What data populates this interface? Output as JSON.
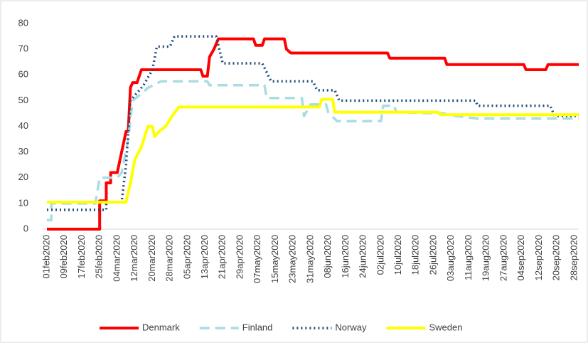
{
  "chart_data": {
    "type": "line",
    "step": false,
    "xlim": [
      "01feb2020",
      "30sep2020"
    ],
    "xticks": [
      "01feb2020",
      "09feb2020",
      "17feb2020",
      "25feb2020",
      "04mar2020",
      "12mar2020",
      "20mar2020",
      "28mar2020",
      "05apr2020",
      "13apr2020",
      "21apr2020",
      "29apr2020",
      "07may2020",
      "15may2020",
      "23may2020",
      "31may2020",
      "08jun2020",
      "16jun2020",
      "24jun2020",
      "02jul2020",
      "10jul2020",
      "18jul2020",
      "26jul2020",
      "03aug2020",
      "11aug2020",
      "19aug2020",
      "27aug2020",
      "04sep2020",
      "12sep2020",
      "20sep2020",
      "28sep2020"
    ],
    "ylim": [
      0,
      80
    ],
    "yticks": [
      0,
      10,
      20,
      30,
      40,
      50,
      60,
      70,
      80
    ],
    "grid": false,
    "legend": "bottom",
    "series": [
      {
        "name": "Denmark",
        "color": "#ff0000",
        "dash": "solid",
        "x": [
          "01feb2020",
          "25feb2020",
          "25feb2020",
          "28feb2020",
          "28feb2020",
          "01mar2020",
          "01mar2020",
          "04mar2020",
          "06mar2020",
          "08mar2020",
          "09mar2020",
          "10mar2020",
          "11mar2020",
          "13mar2020",
          "15mar2020",
          "11apr2020",
          "12apr2020",
          "14apr2020",
          "15apr2020",
          "17apr2020",
          "19apr2020",
          "05may2020",
          "06may2020",
          "09may2020",
          "10may2020",
          "19may2020",
          "20may2020",
          "22may2020",
          "05jul2020",
          "06jul2020",
          "31jul2020",
          "01aug2020",
          "05sep2020",
          "06sep2020",
          "15sep2020",
          "16sep2020",
          "30sep2020"
        ],
        "values": [
          0,
          0,
          11,
          11,
          18,
          18,
          22,
          22,
          30,
          38,
          38,
          55,
          57,
          57,
          62,
          62,
          59.5,
          59.5,
          67,
          70,
          74,
          74,
          71.5,
          71.5,
          74,
          74,
          70,
          68.5,
          68.5,
          66.5,
          66.5,
          64,
          64,
          62,
          62,
          64,
          64
        ]
      },
      {
        "name": "Finland",
        "color": "#a9dce3",
        "dash": "dashed",
        "x": [
          "01feb2020",
          "03feb2020",
          "03feb2020",
          "23feb2020",
          "25feb2020",
          "04mar2020",
          "06mar2020",
          "09mar2020",
          "11mar2020",
          "14mar2020",
          "18mar2020",
          "24mar2020",
          "14apr2020",
          "15apr2020",
          "10may2020",
          "11may2020",
          "27may2020",
          "28may2020",
          "31may2020",
          "07jun2020",
          "08jun2020",
          "12jun2020",
          "02jul2020",
          "03jul2020",
          "08jul2020",
          "09jul2020",
          "31jul2020",
          "01aug2020",
          "15aug2020",
          "30sep2020"
        ],
        "values": [
          3.5,
          3.5,
          10,
          10,
          20,
          20,
          22,
          35,
          50,
          52,
          55,
          57.5,
          57.5,
          56,
          56,
          51,
          51,
          44,
          48.5,
          48.5,
          45.5,
          42,
          42,
          48,
          48,
          45.5,
          45,
          44.5,
          43,
          43
        ]
      },
      {
        "name": "Norway",
        "color": "#1f4e79",
        "dash": "dotted",
        "x": [
          "01feb2020",
          "28feb2020",
          "28feb2020",
          "06mar2020",
          "08mar2020",
          "10mar2020",
          "12mar2020",
          "16mar2020",
          "18mar2020",
          "20mar2020",
          "22mar2020",
          "28mar2020",
          "30mar2020",
          "18apr2020",
          "20apr2020",
          "21apr2020",
          "09may2020",
          "13may2020",
          "01jun2020",
          "03jun2020",
          "11jun2020",
          "13jun2020",
          "14aug2020",
          "15aug2020",
          "17sep2020",
          "19sep2020",
          "30sep2020"
        ],
        "values": [
          7.5,
          7.5,
          10.5,
          10.5,
          25,
          50,
          52,
          56,
          59,
          62,
          71,
          71,
          75,
          75,
          68,
          64.5,
          64.5,
          57.5,
          57.5,
          54,
          54,
          50,
          50,
          48,
          48,
          44,
          44
        ]
      },
      {
        "name": "Sweden",
        "color": "#ffff00",
        "dash": "solid",
        "x": [
          "01feb2020",
          "08mar2020",
          "10mar2020",
          "12mar2020",
          "15mar2020",
          "18mar2020",
          "20mar2020",
          "21mar2020",
          "23mar2020",
          "26mar2020",
          "29mar2020",
          "01apr2020",
          "04jun2020",
          "05jun2020",
          "10jun2020",
          "11jun2020",
          "28jul2020",
          "29jul2020",
          "30sep2020"
        ],
        "values": [
          10.5,
          10.5,
          18,
          27,
          32,
          40,
          40,
          36,
          38,
          40,
          44,
          47.5,
          47.5,
          50.5,
          50.5,
          45.5,
          45.5,
          44.5,
          44.5
        ]
      }
    ]
  }
}
